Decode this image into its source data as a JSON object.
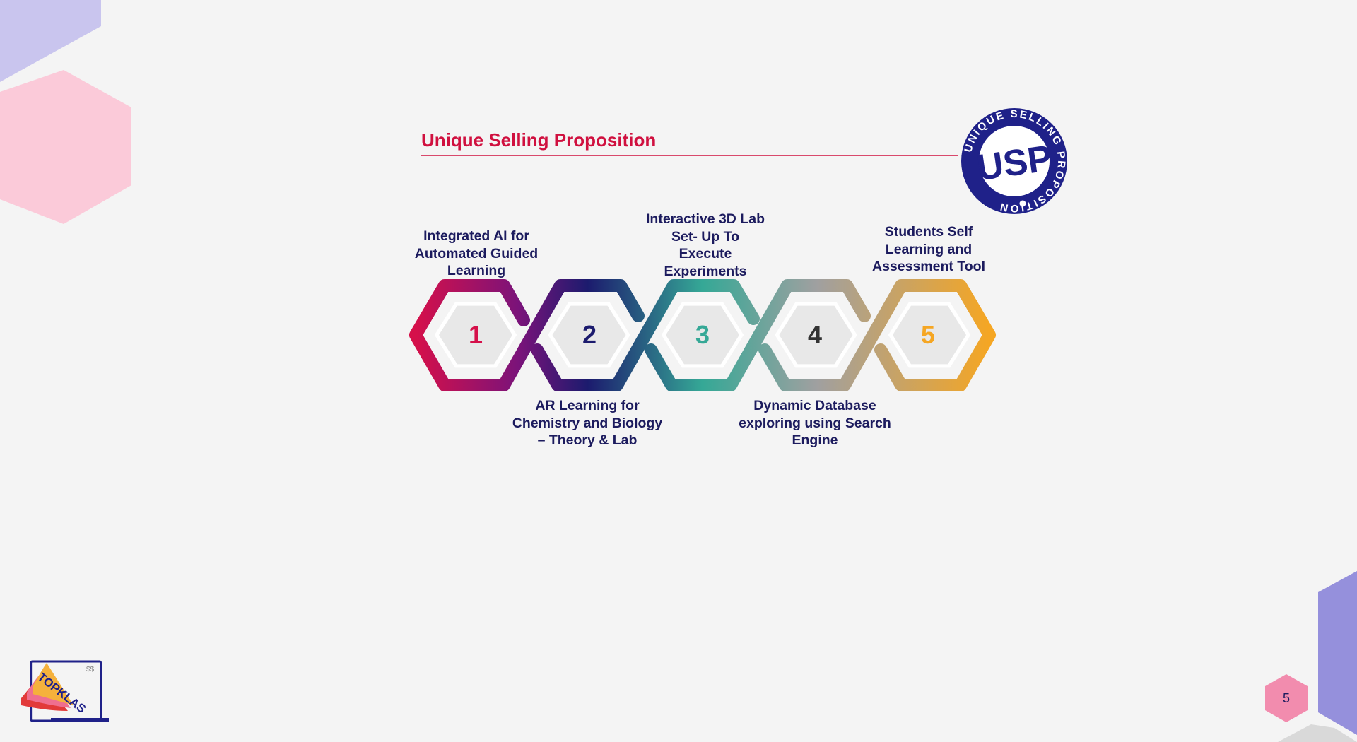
{
  "slide": {
    "title": "Unique Selling Proposition",
    "page_number": "5"
  },
  "badge": {
    "center_text": "USP",
    "ring_text": "UNIQUE SELLING PROPOSITION"
  },
  "logo": {
    "text": "TOPKLAS",
    "screen_mark": "$$"
  },
  "steps": [
    {
      "number": "1",
      "label": "Integrated AI for\nAutomated Guided\nLearning",
      "color": "#d5104a"
    },
    {
      "number": "2",
      "label": "AR Learning  for\nChemistry and Biology\n– Theory & Lab",
      "color": "#1c1b6e"
    },
    {
      "number": "3",
      "label": "Interactive 3D Lab\nSet- Up To\nExecute\nExperiments",
      "color": "#35a896"
    },
    {
      "number": "4",
      "label": "Dynamic Database\nexploring using Search\nEngine",
      "color": "#333333"
    },
    {
      "number": "5",
      "label": "Students Self\nLearning and\nAssessment Tool",
      "color": "#f5a623"
    }
  ],
  "colors": {
    "title": "#d0103f",
    "text_dark": "#1c1b5e",
    "badge_blue": "#1f2189",
    "page_badge": "#f28cae"
  }
}
